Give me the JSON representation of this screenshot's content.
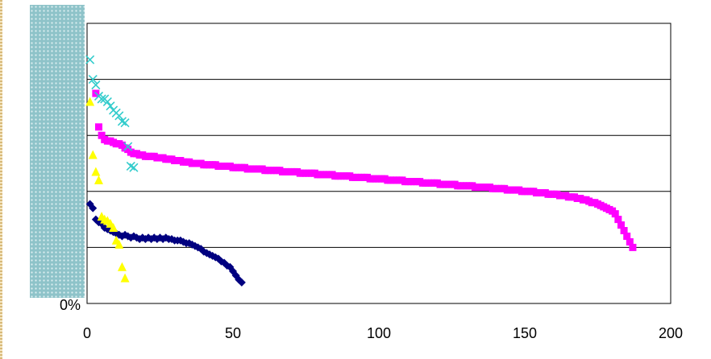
{
  "chart_data": {
    "type": "scatter",
    "xlim": [
      0,
      200
    ],
    "ylim": [
      0,
      100
    ],
    "x_ticks": [
      "0",
      "50",
      "100",
      "150",
      "200"
    ],
    "y_tick_labels": [
      "0%"
    ],
    "grid": "horizontal",
    "colors": {
      "navy": "#000080",
      "magenta": "#ff00ff",
      "yellow": "#ffff00",
      "cyan": "#33cccc",
      "grid": "#000000",
      "panel": "#8ec3c9"
    },
    "series": [
      {
        "marker": "diamond",
        "color": "#000080",
        "points": [
          [
            1,
            35.5
          ],
          [
            2,
            34
          ],
          [
            3,
            30
          ],
          [
            4,
            29
          ],
          [
            5,
            28.5
          ],
          [
            6,
            27
          ],
          [
            7,
            26.5
          ],
          [
            8,
            26
          ],
          [
            9,
            25.5
          ],
          [
            10,
            25
          ],
          [
            11,
            24.5
          ],
          [
            12,
            24
          ],
          [
            13,
            24.5
          ],
          [
            14,
            24
          ],
          [
            15,
            23.5
          ],
          [
            16,
            24
          ],
          [
            17,
            23.5
          ],
          [
            18,
            23
          ],
          [
            19,
            23.5
          ],
          [
            20,
            23
          ],
          [
            21,
            23.5
          ],
          [
            22,
            23
          ],
          [
            23,
            23.5
          ],
          [
            24,
            23
          ],
          [
            25,
            23.5
          ],
          [
            26,
            23
          ],
          [
            27,
            23.5
          ],
          [
            28,
            23
          ],
          [
            29,
            23
          ],
          [
            30,
            22.5
          ],
          [
            31,
            22.5
          ],
          [
            32,
            22.5
          ],
          [
            33,
            22
          ],
          [
            34,
            21.5
          ],
          [
            35,
            21.5
          ],
          [
            36,
            21
          ],
          [
            37,
            20.5
          ],
          [
            38,
            20
          ],
          [
            39,
            19.5
          ],
          [
            40,
            18.5
          ],
          [
            41,
            18
          ],
          [
            42,
            17.5
          ],
          [
            43,
            17
          ],
          [
            44,
            16.5
          ],
          [
            45,
            16
          ],
          [
            46,
            15
          ],
          [
            47,
            14.5
          ],
          [
            48,
            13.5
          ],
          [
            49,
            13
          ],
          [
            50,
            11.5
          ],
          [
            51,
            10
          ],
          [
            52,
            8.5
          ],
          [
            53,
            7.5
          ]
        ]
      },
      {
        "marker": "square",
        "color": "#ff00ff",
        "points": [
          [
            3,
            75
          ],
          [
            4,
            63
          ],
          [
            5,
            60
          ],
          [
            6,
            58.5
          ],
          [
            7,
            58
          ],
          [
            8,
            58
          ],
          [
            9,
            57.5
          ],
          [
            10,
            57
          ],
          [
            11,
            57
          ],
          [
            12,
            56.5
          ],
          [
            13,
            55.5
          ],
          [
            14,
            55
          ],
          [
            15,
            54
          ],
          [
            16,
            53.5
          ],
          [
            17,
            53.5
          ],
          [
            18,
            53
          ],
          [
            19,
            53
          ],
          [
            20,
            52.5
          ],
          [
            21,
            52.5
          ],
          [
            22,
            52.5
          ],
          [
            23,
            52.5
          ],
          [
            24,
            52
          ],
          [
            25,
            52
          ],
          [
            26,
            52
          ],
          [
            27,
            51.5
          ],
          [
            28,
            51.5
          ],
          [
            29,
            51.5
          ],
          [
            30,
            51
          ],
          [
            31,
            51
          ],
          [
            32,
            51
          ],
          [
            33,
            50.5
          ],
          [
            34,
            50.5
          ],
          [
            35,
            50.5
          ],
          [
            36,
            50
          ],
          [
            37,
            50
          ],
          [
            38,
            50
          ],
          [
            39,
            50
          ],
          [
            40,
            49.5
          ],
          [
            41,
            49.5
          ],
          [
            42,
            49.5
          ],
          [
            43,
            49.5
          ],
          [
            44,
            49.5
          ],
          [
            45,
            49
          ],
          [
            46,
            49
          ],
          [
            47,
            49
          ],
          [
            48,
            49
          ],
          [
            49,
            49
          ],
          [
            50,
            48.5
          ],
          [
            51,
            48.5
          ],
          [
            52,
            48.5
          ],
          [
            53,
            48.5
          ],
          [
            54,
            48.5
          ],
          [
            55,
            48
          ],
          [
            56,
            48
          ],
          [
            57,
            48
          ],
          [
            58,
            48
          ],
          [
            59,
            48
          ],
          [
            60,
            48
          ],
          [
            61,
            47.5
          ],
          [
            62,
            47.5
          ],
          [
            63,
            47.5
          ],
          [
            64,
            47.5
          ],
          [
            65,
            47.5
          ],
          [
            66,
            47.5
          ],
          [
            67,
            47
          ],
          [
            68,
            47
          ],
          [
            69,
            47
          ],
          [
            70,
            47
          ],
          [
            71,
            47
          ],
          [
            72,
            47
          ],
          [
            73,
            46.5
          ],
          [
            74,
            46.5
          ],
          [
            75,
            46.5
          ],
          [
            76,
            46.5
          ],
          [
            77,
            46.5
          ],
          [
            78,
            46.5
          ],
          [
            79,
            46
          ],
          [
            80,
            46
          ],
          [
            81,
            46
          ],
          [
            82,
            46
          ],
          [
            83,
            46
          ],
          [
            84,
            46
          ],
          [
            85,
            45.5
          ],
          [
            86,
            45.5
          ],
          [
            87,
            45.5
          ],
          [
            88,
            45.5
          ],
          [
            89,
            45.5
          ],
          [
            90,
            45.5
          ],
          [
            91,
            45
          ],
          [
            92,
            45
          ],
          [
            93,
            45
          ],
          [
            94,
            45
          ],
          [
            95,
            45
          ],
          [
            96,
            45
          ],
          [
            97,
            44.5
          ],
          [
            98,
            44.5
          ],
          [
            99,
            44.5
          ],
          [
            100,
            44.5
          ],
          [
            101,
            44.5
          ],
          [
            102,
            44.5
          ],
          [
            103,
            44
          ],
          [
            104,
            44
          ],
          [
            105,
            44
          ],
          [
            106,
            44
          ],
          [
            107,
            44
          ],
          [
            108,
            44
          ],
          [
            109,
            43.5
          ],
          [
            110,
            43.5
          ],
          [
            111,
            43.5
          ],
          [
            112,
            43.5
          ],
          [
            113,
            43.5
          ],
          [
            114,
            43.5
          ],
          [
            115,
            43
          ],
          [
            116,
            43
          ],
          [
            117,
            43
          ],
          [
            118,
            43
          ],
          [
            119,
            43
          ],
          [
            120,
            43
          ],
          [
            121,
            42.5
          ],
          [
            122,
            42.5
          ],
          [
            123,
            42.5
          ],
          [
            124,
            42.5
          ],
          [
            125,
            42.5
          ],
          [
            126,
            42.5
          ],
          [
            127,
            42
          ],
          [
            128,
            42
          ],
          [
            129,
            42
          ],
          [
            130,
            42
          ],
          [
            131,
            42
          ],
          [
            132,
            42
          ],
          [
            133,
            41.5
          ],
          [
            134,
            41.5
          ],
          [
            135,
            41.5
          ],
          [
            136,
            41.5
          ],
          [
            137,
            41.5
          ],
          [
            138,
            41.5
          ],
          [
            139,
            41
          ],
          [
            140,
            41
          ],
          [
            141,
            41
          ],
          [
            142,
            41
          ],
          [
            143,
            41
          ],
          [
            144,
            40.5
          ],
          [
            145,
            40.5
          ],
          [
            146,
            40.5
          ],
          [
            147,
            40.5
          ],
          [
            148,
            40.5
          ],
          [
            149,
            40
          ],
          [
            150,
            40
          ],
          [
            151,
            40
          ],
          [
            152,
            40
          ],
          [
            153,
            40
          ],
          [
            154,
            39.5
          ],
          [
            155,
            39.5
          ],
          [
            156,
            39.5
          ],
          [
            157,
            39.5
          ],
          [
            158,
            39
          ],
          [
            159,
            39
          ],
          [
            160,
            39
          ],
          [
            161,
            39
          ],
          [
            162,
            38.5
          ],
          [
            163,
            38.5
          ],
          [
            164,
            38.5
          ],
          [
            165,
            38
          ],
          [
            166,
            38
          ],
          [
            167,
            38
          ],
          [
            168,
            37.5
          ],
          [
            169,
            37.5
          ],
          [
            170,
            37
          ],
          [
            171,
            37
          ],
          [
            172,
            36.5
          ],
          [
            173,
            36
          ],
          [
            174,
            36
          ],
          [
            175,
            35.5
          ],
          [
            176,
            35
          ],
          [
            177,
            34.5
          ],
          [
            178,
            34
          ],
          [
            179,
            33.5
          ],
          [
            180,
            33
          ],
          [
            181,
            32
          ],
          [
            182,
            30
          ],
          [
            183,
            28
          ],
          [
            184,
            26
          ],
          [
            185,
            24
          ],
          [
            186,
            22
          ],
          [
            187,
            20
          ]
        ]
      },
      {
        "marker": "triangle",
        "color": "#ffff00",
        "points": [
          [
            1,
            72
          ],
          [
            2,
            53
          ],
          [
            3,
            47
          ],
          [
            4,
            44
          ],
          [
            5,
            31
          ],
          [
            6,
            30
          ],
          [
            7,
            29.5
          ],
          [
            8,
            28.5
          ],
          [
            9,
            27
          ],
          [
            10,
            22.5
          ],
          [
            11,
            21
          ],
          [
            12,
            13
          ],
          [
            13,
            9
          ]
        ]
      },
      {
        "marker": "x",
        "color": "#33cccc",
        "points": [
          [
            1,
            87
          ],
          [
            2,
            80
          ],
          [
            3,
            78
          ],
          [
            4,
            74
          ],
          [
            5,
            73
          ],
          [
            6,
            73
          ],
          [
            7,
            72
          ],
          [
            8,
            70.5
          ],
          [
            9,
            69
          ],
          [
            10,
            68
          ],
          [
            11,
            67
          ],
          [
            12,
            65
          ],
          [
            13,
            64.5
          ],
          [
            14,
            56
          ],
          [
            15,
            49
          ],
          [
            16,
            48.5
          ]
        ]
      }
    ]
  }
}
